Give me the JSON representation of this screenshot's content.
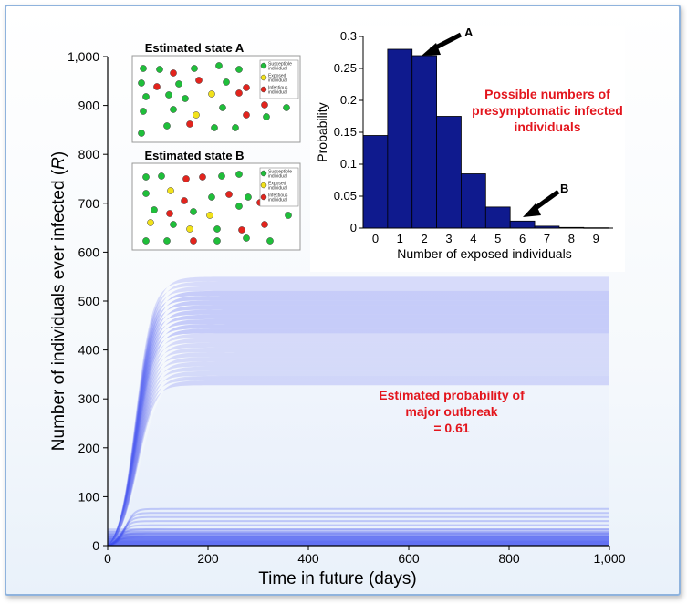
{
  "chart_data": [
    {
      "type": "area",
      "xlabel": "Time in future (days)",
      "ylabel_prefix": "Number of individuals ever infected (",
      "ylabel_var": "R",
      "ylabel_suffix": ")",
      "xlim": [
        0,
        1000
      ],
      "ylim": [
        0,
        1000
      ],
      "x_ticks": [
        "0",
        "200",
        "400",
        "600",
        "800",
        "1,000"
      ],
      "y_ticks": [
        "0",
        "100",
        "200",
        "300",
        "400",
        "500",
        "600",
        "700",
        "800",
        "900",
        "1,000"
      ],
      "series": [
        {
          "x": [
            0,
            25,
            50,
            75,
            100,
            125,
            150,
            200,
            400,
            600,
            800,
            1000
          ],
          "lower": [
            0,
            2,
            4,
            5,
            5,
            5,
            5,
            5,
            5,
            5,
            5,
            5
          ],
          "upper": [
            0,
            60,
            200,
            380,
            490,
            545,
            565,
            570,
            570,
            570,
            570,
            570
          ]
        },
        {
          "x": [
            0,
            25,
            50,
            75,
            100,
            125,
            150,
            200,
            400,
            600,
            800,
            1000
          ],
          "median_major": [
            0,
            40,
            150,
            300,
            400,
            450,
            470,
            480,
            480,
            480,
            480,
            480
          ]
        }
      ],
      "bands": [
        {
          "from": 0,
          "to": 35,
          "density": 0.85
        },
        {
          "from": 340,
          "to": 570,
          "density": 0.5
        },
        {
          "from": 450,
          "to": 540,
          "density": 0.75
        }
      ],
      "color": "#3d4cf0",
      "annotation": [
        "Estimated probability of",
        "major outbreak",
        "= 0.61"
      ],
      "annotation_color": "#e3151d"
    },
    {
      "type": "bar",
      "xlabel": "Number of exposed individuals",
      "ylabel": "Probability",
      "categories": [
        "0",
        "1",
        "2",
        "3",
        "4",
        "5",
        "6",
        "7",
        "8",
        "9"
      ],
      "values": [
        0.145,
        0.28,
        0.27,
        0.175,
        0.085,
        0.033,
        0.011,
        0.003,
        0.001,
        0.0005
      ],
      "ylim": [
        0,
        0.3
      ],
      "y_ticks": [
        "0",
        "0.05",
        "0.1",
        "0.15",
        "0.2",
        "0.25",
        "0.3"
      ],
      "bar_color": "#0f1a8e",
      "arrow_labels": [
        "A",
        "B"
      ],
      "annotation": [
        "Possible numbers of",
        "presymptomatic infected",
        "individuals"
      ],
      "annotation_color": "#e3151d"
    }
  ],
  "states": [
    {
      "title": "Estimated state A",
      "legend": [
        {
          "color": "#1fbf3a",
          "lines": [
            "Susceptible",
            "individual"
          ]
        },
        {
          "color": "#f2e21a",
          "lines": [
            "Exposed",
            "individual"
          ]
        },
        {
          "color": "#e3241d",
          "lines": [
            "Infectious",
            "individual"
          ]
        }
      ]
    },
    {
      "title": "Estimated state B",
      "legend": [
        {
          "color": "#1fbf3a",
          "lines": [
            "Susceptible",
            "individual"
          ]
        },
        {
          "color": "#f2e21a",
          "lines": [
            "Exposed",
            "individual"
          ]
        },
        {
          "color": "#e3241d",
          "lines": [
            "Infectious",
            "individual"
          ]
        }
      ]
    }
  ]
}
